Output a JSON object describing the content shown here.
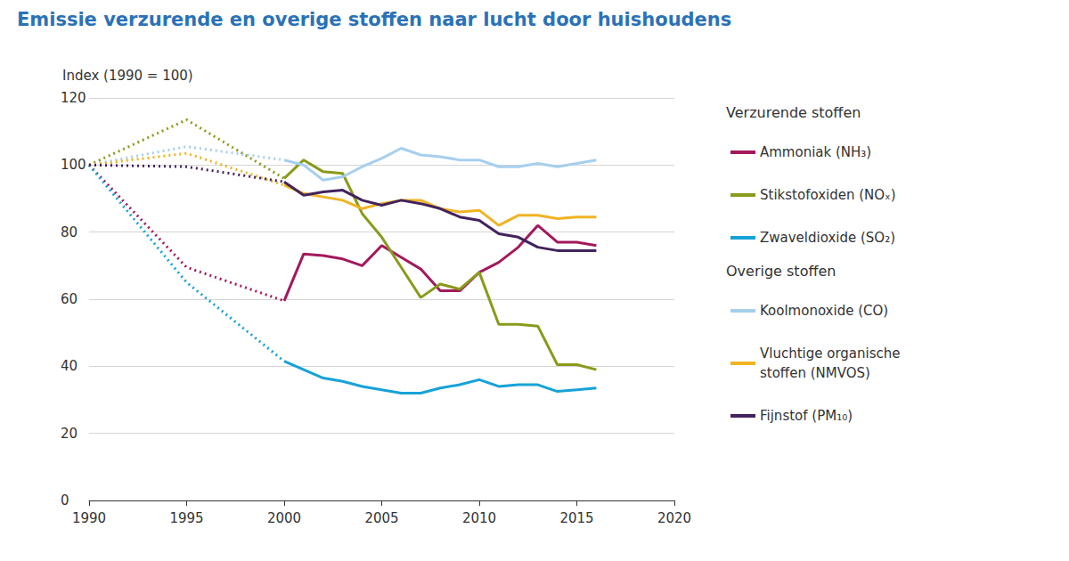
{
  "chart_data": {
    "type": "line",
    "title": "Emissie verzurende en overige stoffen naar lucht door huishoudens",
    "y_label": "Index (1990 = 100)",
    "x": [
      1990,
      1995,
      2000,
      2001,
      2002,
      2003,
      2004,
      2005,
      2006,
      2007,
      2008,
      2009,
      2010,
      2011,
      2012,
      2013,
      2014,
      2015,
      2016
    ],
    "series": [
      {
        "name": "Ammoniak (NH₃)",
        "group": "Verzurende stoffen",
        "color": "#a3195b",
        "line_style": "solid",
        "values": [
          100,
          69.5,
          59.5,
          73.5,
          73,
          72,
          70,
          76,
          72.5,
          69,
          62.5,
          62.5,
          68,
          71,
          75.5,
          82,
          77,
          77,
          76
        ]
      },
      {
        "name": "Stikstofoxiden (NOₓ)",
        "group": "Verzurende stoffen",
        "color": "#8a9a1b",
        "line_style": "solid",
        "values": [
          100,
          113.5,
          96,
          101.5,
          98,
          97.5,
          85.5,
          78.5,
          69.5,
          60.5,
          64.5,
          63,
          68,
          52.5,
          52.5,
          52,
          40.5,
          40.5,
          39
        ]
      },
      {
        "name": "Zwaveldioxide (SO₂)",
        "group": "Verzurende stoffen",
        "color": "#16a2d8",
        "line_style": "solid",
        "values": [
          100,
          65,
          41.5,
          39,
          36.5,
          35.5,
          34,
          33,
          32,
          32,
          33.5,
          34.5,
          36,
          34,
          34.5,
          34.5,
          32.5,
          33,
          33.5
        ]
      },
      {
        "name": "Koolmonoxide (CO)",
        "group": "Overige stoffen",
        "color": "#a6cfee",
        "line_style": "solid",
        "values": [
          100,
          105.5,
          101.5,
          100,
          95.5,
          96.5,
          99.5,
          102,
          105,
          103,
          102.5,
          101.5,
          101.5,
          99.5,
          99.5,
          100.5,
          99.5,
          100.5,
          101.5
        ]
      },
      {
        "name": "Vluchtige organische stoffen (NMVOS)",
        "group": "Overige stoffen",
        "color": "#f0b323",
        "line_style": "solid",
        "values": [
          100,
          103.5,
          94,
          91.5,
          90.5,
          89.5,
          87,
          88.5,
          89.5,
          89.5,
          87,
          86,
          86.5,
          82,
          85,
          85,
          84,
          84.5,
          84.5
        ]
      },
      {
        "name": "Fijnstof (PM₁₀)",
        "group": "Overige stoffen",
        "color": "#42235e",
        "line_style": "solid",
        "values": [
          100,
          99.5,
          95,
          91,
          92,
          92.5,
          89.5,
          88,
          89.5,
          88.5,
          87,
          84.5,
          83.5,
          79.5,
          78.5,
          75.5,
          74.5,
          74.5,
          74.5
        ]
      }
    ],
    "xlim": [
      1990,
      2020
    ],
    "xticks": [
      1990,
      1995,
      2000,
      2005,
      2010,
      2015,
      2020
    ],
    "ylim": [
      0,
      120
    ],
    "yticks": [
      0,
      20,
      40,
      60,
      80,
      100,
      120
    ],
    "grid": true,
    "legend": "right"
  }
}
